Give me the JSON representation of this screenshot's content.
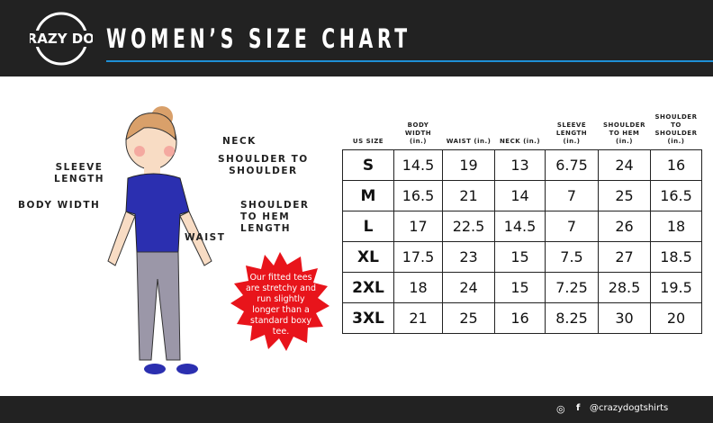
{
  "header": {
    "title": "WOMEN’S SIZE CHART",
    "logo_text": "CRAZY DOG T-Shirts"
  },
  "labels": {
    "neck": "NECK",
    "shoulder_to_shoulder": "SHOULDER TO\nSHOULDER",
    "sleeve_length": "SLEEVE\nLENGTH",
    "body_width": "BODY WIDTH",
    "shoulder_to_hem": "SHOULDER\nTO HEM\nLENGTH",
    "waist": "WAIST"
  },
  "badge": {
    "text": "Our fitted tees are stretchy and run slightly longer than a standard boxy tee.",
    "color": "#e8141b"
  },
  "table": {
    "headers": [
      "US SIZE",
      "BODY\nWIDTH\n(in.)",
      "WAIST (in.)",
      "NECK (in.)",
      "SLEEVE\nLENGTH\n(in.)",
      "SHOULDER\nTO HEM\n(in.)",
      "SHOULDER TO\nSHOULDER\n(in.)"
    ],
    "rows": [
      [
        "S",
        "14.5",
        "19",
        "13",
        "6.75",
        "24",
        "16"
      ],
      [
        "M",
        "16.5",
        "21",
        "14",
        "7",
        "25",
        "16.5"
      ],
      [
        "L",
        "17",
        "22.5",
        "14.5",
        "7",
        "26",
        "18"
      ],
      [
        "XL",
        "17.5",
        "23",
        "15",
        "7.5",
        "27",
        "18.5"
      ],
      [
        "2XL",
        "18",
        "24",
        "15",
        "7.25",
        "28.5",
        "19.5"
      ],
      [
        "3XL",
        "21",
        "25",
        "16",
        "8.25",
        "30",
        "20"
      ]
    ]
  },
  "footer": {
    "handle": "@crazydogtshirts",
    "icons": [
      "instagram-icon",
      "facebook-icon"
    ]
  },
  "colors": {
    "header_bg": "#222222",
    "accent": "#1e8fd6",
    "shirt": "#2b2fb0"
  }
}
